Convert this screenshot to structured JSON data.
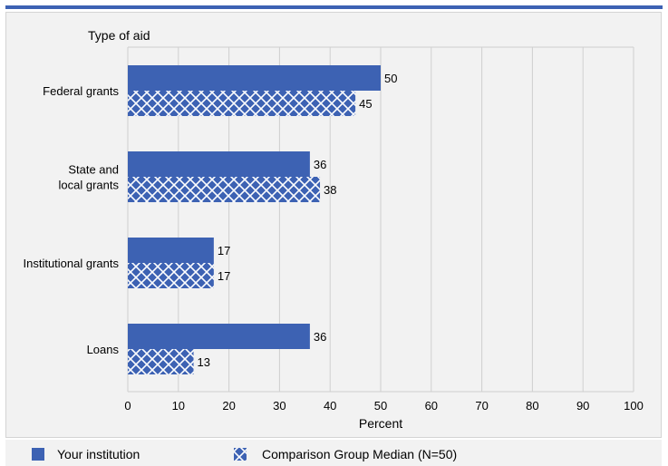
{
  "colors": {
    "accent": "#3d62b3",
    "bar_fill": "#3d62b3",
    "hatch_line": "#ffffff",
    "grid": "#cfcfcf",
    "background": "#f2f2f2"
  },
  "chart_data": {
    "type": "bar",
    "orientation": "horizontal",
    "title": "",
    "ylabel": "Type of aid",
    "xlabel": "Percent",
    "xlim": [
      0,
      100
    ],
    "xticks": [
      0,
      10,
      20,
      30,
      40,
      50,
      60,
      70,
      80,
      90,
      100
    ],
    "grid": true,
    "legend_position": "bottom",
    "categories": [
      [
        "Federal grants"
      ],
      [
        "State and",
        "local grants"
      ],
      [
        "Institutional grants"
      ],
      [
        "Loans"
      ]
    ],
    "series": [
      {
        "name": "Your institution",
        "pattern": "solid",
        "values": [
          50,
          36,
          17,
          36
        ]
      },
      {
        "name": "Comparison Group Median (N=50)",
        "pattern": "crosshatch",
        "values": [
          45,
          38,
          17,
          13
        ]
      }
    ]
  }
}
